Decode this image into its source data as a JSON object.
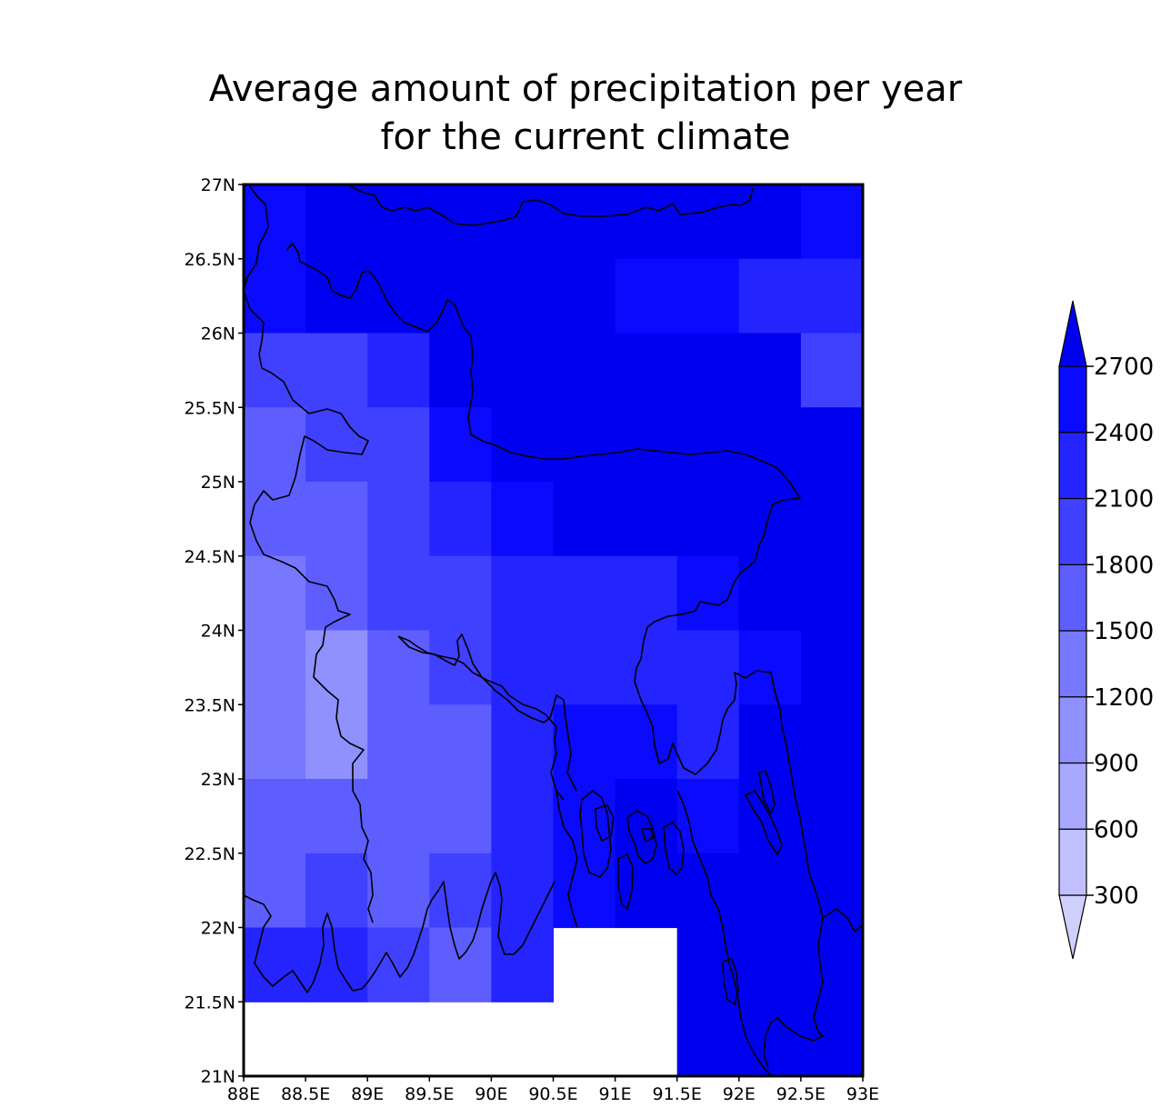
{
  "chart_data": {
    "type": "heatmap",
    "title_lines": [
      "Average amount of precipitation per year",
      "for the current climate"
    ],
    "x_ticks": [
      "88E",
      "88.5E",
      "89E",
      "89.5E",
      "90E",
      "90.5E",
      "91E",
      "91.5E",
      "92E",
      "92.5E",
      "93E"
    ],
    "y_ticks": [
      "21N",
      "21.5N",
      "22N",
      "22.5N",
      "23N",
      "23.5N",
      "24N",
      "24.5N",
      "25N",
      "25.5N",
      "26N",
      "26.5N",
      "27N"
    ],
    "xlim": [
      88,
      93
    ],
    "ylim": [
      21,
      27
    ],
    "grid_columns": [
      "88-88.5",
      "88.5-89",
      "89-89.5",
      "89.5-90",
      "90-90.5",
      "90.5-91",
      "91-91.5",
      "91.5-92",
      "92-92.5",
      "92.5-93"
    ],
    "grid_rows": [
      "27-26.5",
      "26.5-26",
      "26-25.5",
      "25.5-25",
      "25-24.5",
      "24.5-24",
      "24-23.5",
      "23.5-23",
      "23-22.5",
      "22.5-22",
      "22-21.5",
      "21.5-21"
    ],
    "values": [
      [
        2550,
        2850,
        2850,
        2850,
        2850,
        2850,
        2850,
        2850,
        2850,
        2550
      ],
      [
        2550,
        2850,
        2850,
        2850,
        2850,
        2850,
        2550,
        2550,
        2250,
        2250
      ],
      [
        1950,
        1950,
        2250,
        2850,
        2850,
        2850,
        2850,
        2850,
        2850,
        1950
      ],
      [
        1650,
        1950,
        1950,
        2550,
        2850,
        2850,
        2850,
        2850,
        2850,
        2850
      ],
      [
        1650,
        1650,
        1950,
        2250,
        2550,
        2850,
        2850,
        2850,
        2850,
        2850
      ],
      [
        1350,
        1650,
        1950,
        1950,
        2250,
        2250,
        2250,
        2550,
        2850,
        2850
      ],
      [
        1350,
        1050,
        1650,
        1950,
        2250,
        2250,
        2250,
        2250,
        2550,
        2850
      ],
      [
        1350,
        1050,
        1650,
        1650,
        2250,
        2550,
        2550,
        2250,
        2850,
        2850
      ],
      [
        1650,
        1650,
        1650,
        1650,
        2250,
        2550,
        2850,
        2550,
        2850,
        2850
      ],
      [
        1650,
        1950,
        1650,
        1950,
        2250,
        2550,
        2850,
        2850,
        2850,
        2850
      ],
      [
        2250,
        2250,
        1950,
        1650,
        2250,
        null,
        null,
        2850,
        2850,
        2850
      ],
      [
        null,
        null,
        null,
        null,
        null,
        null,
        null,
        2850,
        2850,
        2850
      ]
    ],
    "colorbar": {
      "levels": [
        "300",
        "600",
        "900",
        "1200",
        "1500",
        "1800",
        "2100",
        "2400",
        "2700"
      ],
      "colors": [
        "#d0d0ff",
        "#c0c0ff",
        "#a8a8ff",
        "#9090ff",
        "#7878ff",
        "#5e5eff",
        "#4040ff",
        "#2424ff",
        "#0a0aff",
        "#0000f0"
      ]
    },
    "grid": false,
    "legend_position": "right"
  }
}
